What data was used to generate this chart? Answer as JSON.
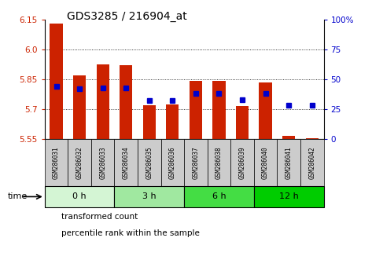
{
  "title": "GDS3285 / 216904_at",
  "samples": [
    "GSM286031",
    "GSM286032",
    "GSM286033",
    "GSM286034",
    "GSM286035",
    "GSM286036",
    "GSM286037",
    "GSM286038",
    "GSM286039",
    "GSM286040",
    "GSM286041",
    "GSM286042"
  ],
  "transformed_count": [
    6.13,
    5.87,
    5.925,
    5.92,
    5.72,
    5.725,
    5.84,
    5.84,
    5.715,
    5.835,
    5.565,
    5.555
  ],
  "percentile_rank": [
    44,
    42,
    43,
    43,
    32,
    32,
    38,
    38,
    33,
    38,
    28,
    28
  ],
  "ylim_left": [
    5.55,
    6.15
  ],
  "ylim_right": [
    0,
    100
  ],
  "yticks_left": [
    5.55,
    5.7,
    5.85,
    6.0,
    6.15
  ],
  "yticks_right": [
    0,
    25,
    50,
    75,
    100
  ],
  "groups": [
    {
      "label": "0 h",
      "start": 0,
      "end": 3,
      "color": "#d4f5d4"
    },
    {
      "label": "3 h",
      "start": 3,
      "end": 6,
      "color": "#a0e8a0"
    },
    {
      "label": "6 h",
      "start": 6,
      "end": 9,
      "color": "#44dd44"
    },
    {
      "label": "12 h",
      "start": 9,
      "end": 12,
      "color": "#00cc00"
    }
  ],
  "bar_color": "#cc2200",
  "dot_color": "#0000cc",
  "bar_bottom": 5.55,
  "sample_bg": "#cccccc",
  "legend_red": "#cc2200",
  "legend_blue": "#0000cc"
}
